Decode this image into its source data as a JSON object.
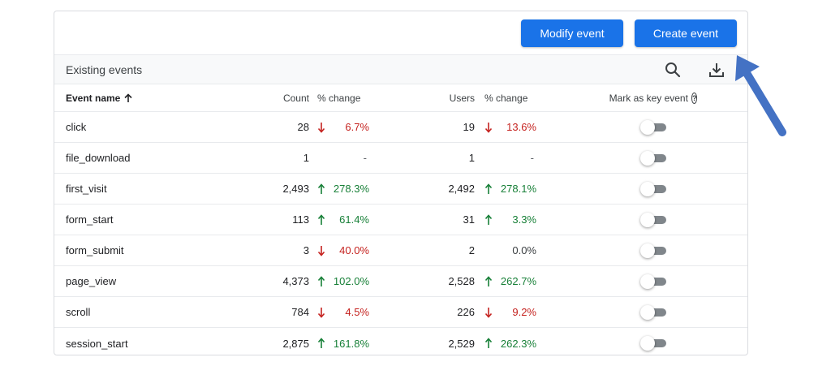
{
  "toolbar": {
    "modify_label": "Modify event",
    "create_label": "Create event"
  },
  "section": {
    "title": "Existing events",
    "search_icon": "search-icon",
    "download_icon": "download-icon"
  },
  "table": {
    "headers": {
      "event_name": "Event name",
      "count": "Count",
      "count_change": "% change",
      "users": "Users",
      "users_change": "% change",
      "key_event": "Mark as key event"
    },
    "rows": [
      {
        "name": "click",
        "count": "28",
        "count_change": "6.7%",
        "count_dir": "down",
        "users": "19",
        "users_change": "13.6%",
        "users_dir": "down"
      },
      {
        "name": "file_download",
        "count": "1",
        "count_change": "-",
        "count_dir": "none",
        "users": "1",
        "users_change": "-",
        "users_dir": "none"
      },
      {
        "name": "first_visit",
        "count": "2,493",
        "count_change": "278.3%",
        "count_dir": "up",
        "users": "2,492",
        "users_change": "278.1%",
        "users_dir": "up"
      },
      {
        "name": "form_start",
        "count": "113",
        "count_change": "61.4%",
        "count_dir": "up",
        "users": "31",
        "users_change": "3.3%",
        "users_dir": "up"
      },
      {
        "name": "form_submit",
        "count": "3",
        "count_change": "40.0%",
        "count_dir": "down",
        "users": "2",
        "users_change": "0.0%",
        "users_dir": "neutral"
      },
      {
        "name": "page_view",
        "count": "4,373",
        "count_change": "102.0%",
        "count_dir": "up",
        "users": "2,528",
        "users_change": "262.7%",
        "users_dir": "up"
      },
      {
        "name": "scroll",
        "count": "784",
        "count_change": "4.5%",
        "count_dir": "down",
        "users": "226",
        "users_change": "9.2%",
        "users_dir": "down"
      },
      {
        "name": "session_start",
        "count": "2,875",
        "count_change": "161.8%",
        "count_dir": "up",
        "users": "2,529",
        "users_change": "262.3%",
        "users_dir": "up"
      }
    ]
  },
  "colors": {
    "primary": "#1a73e8",
    "down": "#c5221f",
    "up": "#188038",
    "annotation_arrow": "#4472c4"
  }
}
